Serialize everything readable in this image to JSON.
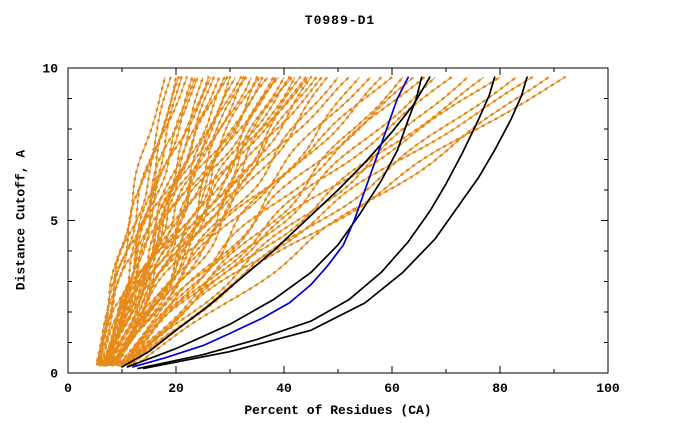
{
  "chart_data": {
    "type": "line",
    "title": "T0989-D1",
    "xlabel": "Percent of Residues (CA)",
    "ylabel": "Distance Cutoff, A",
    "xlim": [
      0,
      100
    ],
    "ylim": [
      0,
      10
    ],
    "x_major_ticks": [
      0,
      20,
      40,
      60,
      80,
      100
    ],
    "x_minor_ticks": [
      10,
      30,
      50,
      70,
      90
    ],
    "y_major_ticks": [
      0,
      5,
      10
    ],
    "y_minor_ticks": [
      1,
      2,
      3,
      4,
      6,
      7,
      8,
      9
    ],
    "grid": false,
    "legend": "none",
    "colors": {
      "ensemble": "#e68a19",
      "highlight": "#0000cd",
      "reference": "#000000"
    },
    "series": [
      {
        "name": "black-model-1",
        "color": "#000000",
        "width": 1.7,
        "points": [
          [
            10,
            0.2
          ],
          [
            15,
            0.7
          ],
          [
            20,
            1.4
          ],
          [
            26,
            2.2
          ],
          [
            32,
            3.1
          ],
          [
            38,
            4.0
          ],
          [
            44,
            5.0
          ],
          [
            50,
            6.0
          ],
          [
            55,
            6.9
          ],
          [
            60,
            7.9
          ],
          [
            64,
            8.8
          ],
          [
            67,
            9.7
          ]
        ]
      },
      {
        "name": "black-model-2",
        "color": "#000000",
        "width": 1.7,
        "points": [
          [
            11,
            0.2
          ],
          [
            20,
            0.8
          ],
          [
            30,
            1.6
          ],
          [
            38,
            2.4
          ],
          [
            45,
            3.3
          ],
          [
            50,
            4.2
          ],
          [
            54,
            5.2
          ],
          [
            58,
            6.3
          ],
          [
            61,
            7.3
          ],
          [
            63,
            8.3
          ],
          [
            64.5,
            9.0
          ],
          [
            65.5,
            9.7
          ]
        ]
      },
      {
        "name": "black-model-3",
        "color": "#000000",
        "width": 1.7,
        "points": [
          [
            13,
            0.15
          ],
          [
            25,
            0.6
          ],
          [
            35,
            1.1
          ],
          [
            45,
            1.7
          ],
          [
            52,
            2.4
          ],
          [
            58,
            3.3
          ],
          [
            63,
            4.3
          ],
          [
            67,
            5.3
          ],
          [
            70,
            6.2
          ],
          [
            73,
            7.2
          ],
          [
            76,
            8.3
          ],
          [
            78,
            9.1
          ],
          [
            79,
            9.7
          ]
        ]
      },
      {
        "name": "black-model-4",
        "color": "#000000",
        "width": 1.7,
        "points": [
          [
            14,
            0.15
          ],
          [
            30,
            0.7
          ],
          [
            45,
            1.4
          ],
          [
            55,
            2.3
          ],
          [
            62,
            3.3
          ],
          [
            68,
            4.4
          ],
          [
            72,
            5.4
          ],
          [
            76,
            6.4
          ],
          [
            79,
            7.3
          ],
          [
            82,
            8.3
          ],
          [
            84,
            9.1
          ],
          [
            85,
            9.7
          ]
        ]
      },
      {
        "name": "blue-model",
        "color": "#0000cd",
        "width": 1.7,
        "points": [
          [
            12,
            0.2
          ],
          [
            18,
            0.5
          ],
          [
            25,
            0.9
          ],
          [
            30,
            1.3
          ],
          [
            36,
            1.8
          ],
          [
            41,
            2.3
          ],
          [
            45,
            2.9
          ],
          [
            48,
            3.5
          ],
          [
            51,
            4.2
          ],
          [
            53,
            5.0
          ],
          [
            55,
            6.0
          ],
          [
            57,
            7.0
          ],
          [
            59,
            8.0
          ],
          [
            61,
            9.0
          ],
          [
            63,
            9.7
          ]
        ]
      }
    ],
    "ensemble": {
      "name": "model-pool-curves",
      "color": "#e68a19",
      "y_start": 0.25,
      "y_end": 9.7,
      "curves": [
        [
          6.0,
          18,
          1.3
        ],
        [
          5.2,
          19,
          1.05
        ],
        [
          6.8,
          20,
          0.9
        ],
        [
          5.5,
          20.5,
          1.2
        ],
        [
          7.0,
          21,
          1.0
        ],
        [
          5.8,
          22,
          1.35
        ],
        [
          6.4,
          23,
          0.95
        ],
        [
          7.2,
          23.5,
          1.15
        ],
        [
          5.4,
          24,
          1.25
        ],
        [
          6.9,
          25,
          0.88
        ],
        [
          7.5,
          26,
          1.1
        ],
        [
          5.9,
          26.5,
          1.3
        ],
        [
          6.2,
          27,
          0.92
        ],
        [
          7.8,
          28,
          1.18
        ],
        [
          6.6,
          29,
          1.02
        ],
        [
          5.6,
          29.5,
          1.28
        ],
        [
          7.1,
          30,
          0.9
        ],
        [
          6.3,
          31,
          1.12
        ],
        [
          7.9,
          32,
          1.22
        ],
        [
          6.0,
          32.5,
          0.95
        ],
        [
          7.4,
          33,
          1.3
        ],
        [
          6.7,
          34,
          1.05
        ],
        [
          8.1,
          35,
          0.9
        ],
        [
          6.1,
          35.5,
          1.2
        ],
        [
          7.6,
          36,
          1.0
        ],
        [
          6.5,
          37,
          1.32
        ],
        [
          8.3,
          38,
          0.93
        ],
        [
          6.8,
          38.5,
          1.15
        ],
        [
          7.2,
          39,
          1.25
        ],
        [
          8.6,
          40,
          0.98
        ],
        [
          7.0,
          41,
          1.1
        ],
        [
          8.0,
          41.5,
          1.28
        ],
        [
          7.7,
          42,
          0.9
        ],
        [
          8.8,
          43,
          1.18
        ],
        [
          7.3,
          44,
          1.0
        ],
        [
          8.2,
          44.5,
          1.3
        ],
        [
          7.9,
          45,
          0.95
        ],
        [
          9.0,
          46,
          1.12
        ],
        [
          8.4,
          47,
          1.22
        ],
        [
          7.5,
          48,
          0.92
        ],
        [
          9.2,
          50,
          1.08
        ],
        [
          8.6,
          52,
          1.25
        ],
        [
          9.5,
          54,
          0.96
        ],
        [
          8.9,
          56,
          1.15
        ],
        [
          9.8,
          58,
          1.02
        ],
        [
          9.1,
          60,
          1.28
        ],
        [
          10.2,
          62,
          0.94
        ],
        [
          9.4,
          64,
          1.12
        ],
        [
          10.6,
          66,
          1.2
        ],
        [
          9.7,
          68,
          1.0
        ],
        [
          10.9,
          71,
          1.15
        ],
        [
          10.1,
          74,
          0.97
        ],
        [
          11.3,
          77,
          1.1
        ],
        [
          10.5,
          80,
          1.22
        ],
        [
          11.8,
          83,
          1.05
        ],
        [
          11.0,
          86,
          1.15
        ],
        [
          12.4,
          89,
          1.0
        ],
        [
          11.5,
          92,
          1.12
        ]
      ]
    }
  }
}
